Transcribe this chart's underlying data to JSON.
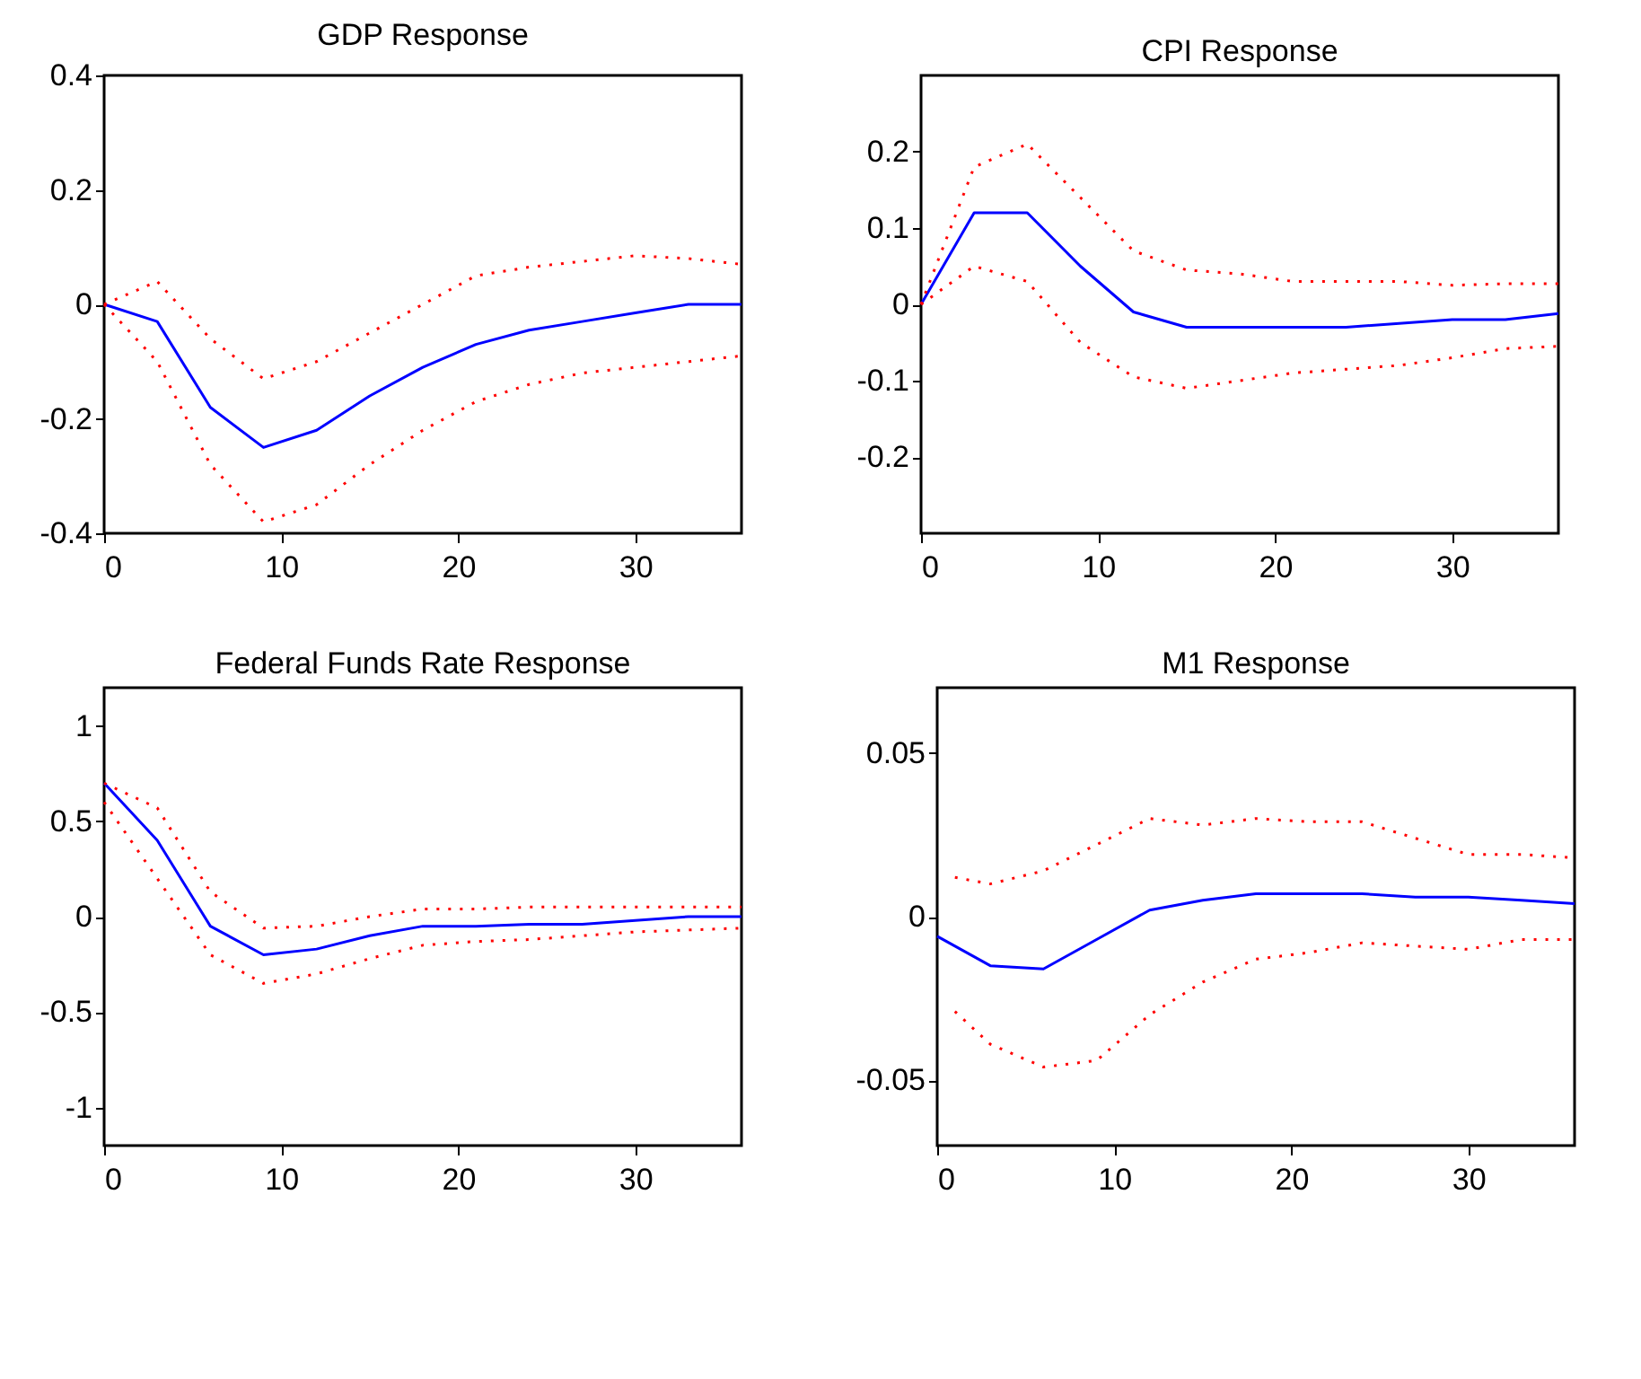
{
  "chart_data": [
    {
      "type": "line",
      "title": "GDP Response",
      "xlim": [
        0,
        36
      ],
      "xticks": [
        0,
        10,
        20,
        30
      ],
      "ylim": [
        -0.4,
        0.4
      ],
      "yticks": [
        -0.4,
        -0.2,
        0,
        0.2,
        0.4
      ],
      "grid": false,
      "series": [
        {
          "color": "#0000ff",
          "line_style": "solid",
          "x": [
            0,
            3,
            6,
            9,
            12,
            15,
            18,
            21,
            24,
            27,
            30,
            33,
            36
          ],
          "values": [
            0,
            -0.03,
            -0.18,
            -0.25,
            -0.22,
            -0.16,
            -0.11,
            -0.07,
            -0.045,
            -0.03,
            -0.015,
            0,
            0
          ]
        },
        {
          "color": "#ff0000",
          "line_style": "dotted",
          "x": [
            0,
            3,
            6,
            9,
            12,
            15,
            18,
            21,
            24,
            27,
            30,
            33,
            36
          ],
          "values": [
            0,
            0.04,
            -0.06,
            -0.13,
            -0.1,
            -0.05,
            0,
            0.05,
            0.065,
            0.075,
            0.085,
            0.08,
            0.07
          ]
        },
        {
          "color": "#ff0000",
          "line_style": "dotted",
          "x": [
            0,
            3,
            6,
            9,
            12,
            15,
            18,
            21,
            24,
            27,
            30,
            33,
            36
          ],
          "values": [
            0,
            -0.1,
            -0.28,
            -0.38,
            -0.35,
            -0.28,
            -0.22,
            -0.17,
            -0.14,
            -0.12,
            -0.11,
            -0.1,
            -0.09
          ]
        }
      ]
    },
    {
      "type": "line",
      "title": "CPI Response",
      "xlim": [
        0,
        36
      ],
      "xticks": [
        0,
        10,
        20,
        30
      ],
      "ylim": [
        -0.3,
        0.3
      ],
      "yticks": [
        -0.2,
        -0.1,
        0,
        0.1,
        0.2
      ],
      "grid": false,
      "series": [
        {
          "color": "#0000ff",
          "line_style": "solid",
          "x": [
            0,
            3,
            6,
            9,
            12,
            15,
            18,
            21,
            24,
            27,
            30,
            33,
            36
          ],
          "values": [
            0,
            0.12,
            0.12,
            0.05,
            -0.01,
            -0.03,
            -0.03,
            -0.03,
            -0.03,
            -0.025,
            -0.02,
            -0.02,
            -0.012
          ]
        },
        {
          "color": "#ff0000",
          "line_style": "dotted",
          "x": [
            0,
            3,
            6,
            9,
            12,
            15,
            18,
            21,
            24,
            27,
            30,
            33,
            36
          ],
          "values": [
            0,
            0.18,
            0.21,
            0.14,
            0.07,
            0.045,
            0.04,
            0.03,
            0.03,
            0.03,
            0.025,
            0.027,
            0.027
          ]
        },
        {
          "color": "#ff0000",
          "line_style": "dotted",
          "x": [
            0,
            3,
            6,
            9,
            12,
            15,
            18,
            21,
            24,
            27,
            30,
            33,
            36
          ],
          "values": [
            0,
            0.05,
            0.03,
            -0.05,
            -0.095,
            -0.11,
            -0.1,
            -0.09,
            -0.085,
            -0.08,
            -0.07,
            -0.058,
            -0.055
          ]
        }
      ]
    },
    {
      "type": "line",
      "title": "Federal Funds Rate Response",
      "xlim": [
        0,
        36
      ],
      "xticks": [
        0,
        10,
        20,
        30
      ],
      "ylim": [
        -1.2,
        1.2
      ],
      "yticks": [
        -1,
        -0.5,
        0,
        0.5,
        1
      ],
      "grid": false,
      "series": [
        {
          "color": "#0000ff",
          "line_style": "solid",
          "x": [
            0,
            3,
            6,
            9,
            12,
            15,
            18,
            21,
            24,
            27,
            30,
            33,
            36
          ],
          "values": [
            0.7,
            0.4,
            -0.05,
            -0.2,
            -0.17,
            -0.1,
            -0.05,
            -0.05,
            -0.04,
            -0.04,
            -0.02,
            0,
            0
          ]
        },
        {
          "color": "#ff0000",
          "line_style": "dotted",
          "x": [
            0,
            3,
            6,
            9,
            12,
            15,
            18,
            21,
            24,
            27,
            30,
            33,
            36
          ],
          "values": [
            0.7,
            0.57,
            0.13,
            -0.06,
            -0.05,
            0,
            0.04,
            0.04,
            0.05,
            0.05,
            0.05,
            0.05,
            0.05
          ]
        },
        {
          "color": "#ff0000",
          "line_style": "dotted",
          "x": [
            0,
            3,
            6,
            9,
            12,
            15,
            18,
            21,
            24,
            27,
            30,
            33,
            36
          ],
          "values": [
            0.6,
            0.2,
            -0.2,
            -0.35,
            -0.3,
            -0.22,
            -0.15,
            -0.13,
            -0.12,
            -0.1,
            -0.08,
            -0.07,
            -0.06
          ]
        }
      ]
    },
    {
      "type": "line",
      "title": "M1 Response",
      "xlim": [
        0,
        36
      ],
      "xticks": [
        0,
        10,
        20,
        30
      ],
      "ylim": [
        -0.07,
        0.07
      ],
      "yticks": [
        -0.05,
        0,
        0.05
      ],
      "grid": false,
      "series": [
        {
          "color": "#0000ff",
          "line_style": "solid",
          "x": [
            0,
            3,
            6,
            9,
            12,
            15,
            18,
            21,
            24,
            27,
            30,
            33,
            36
          ],
          "values": [
            -0.006,
            -0.015,
            -0.016,
            -0.007,
            0.002,
            0.005,
            0.007,
            0.007,
            0.007,
            0.006,
            0.006,
            0.005,
            0.004
          ]
        },
        {
          "color": "#ff0000",
          "line_style": "dotted",
          "x": [
            1,
            3,
            6,
            9,
            12,
            15,
            18,
            21,
            24,
            27,
            30,
            33,
            36
          ],
          "values": [
            0.012,
            0.01,
            0.014,
            0.022,
            0.03,
            0.028,
            0.03,
            0.029,
            0.029,
            0.024,
            0.019,
            0.019,
            0.018
          ]
        },
        {
          "color": "#ff0000",
          "line_style": "dotted",
          "x": [
            1,
            3,
            6,
            9,
            12,
            15,
            18,
            21,
            24,
            27,
            30,
            33,
            36
          ],
          "values": [
            -0.029,
            -0.039,
            -0.046,
            -0.044,
            -0.03,
            -0.02,
            -0.013,
            -0.011,
            -0.008,
            -0.009,
            -0.01,
            -0.007,
            -0.007
          ]
        }
      ]
    }
  ]
}
